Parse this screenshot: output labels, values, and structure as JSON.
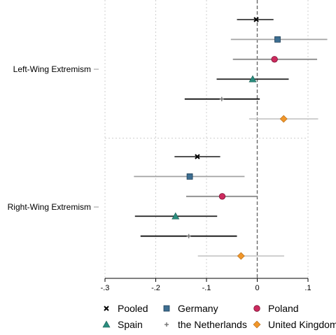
{
  "chart_data": {
    "type": "scatter",
    "subtype": "coefficient-plot",
    "xlim": [
      -0.3,
      0.1
    ],
    "xticks": [
      -0.3,
      -0.2,
      -0.1,
      0,
      0.1
    ],
    "xtick_labels": [
      "-.3",
      "-.2",
      "-.1",
      "0",
      ".1"
    ],
    "grid": true,
    "reference_line": 0,
    "categories": [
      "Left-Wing Extremism",
      "Right-Wing Extremism"
    ],
    "series": [
      {
        "name": "Pooled",
        "marker": "x-icon",
        "color": "#000000",
        "ci_color": "#3a3a3a",
        "points": [
          {
            "category": "Left-Wing Extremism",
            "est": -0.002,
            "lo": -0.04,
            "hi": 0.032
          },
          {
            "category": "Right-Wing Extremism",
            "est": -0.118,
            "lo": -0.163,
            "hi": -0.073
          }
        ]
      },
      {
        "name": "Germany",
        "marker": "square-icon",
        "color": "#3d6e91",
        "ci_color": "#a3a3a3",
        "points": [
          {
            "category": "Left-Wing Extremism",
            "est": 0.04,
            "lo": -0.052,
            "hi": 0.138
          },
          {
            "category": "Right-Wing Extremism",
            "est": -0.133,
            "lo": -0.243,
            "hi": -0.025
          }
        ]
      },
      {
        "name": "Poland",
        "marker": "circle-icon",
        "color": "#cc2a5e",
        "ci_color": "#8c8c8c",
        "points": [
          {
            "category": "Left-Wing Extremism",
            "est": 0.034,
            "lo": -0.048,
            "hi": 0.118
          },
          {
            "category": "Right-Wing Extremism",
            "est": -0.069,
            "lo": -0.14,
            "hi": 0.0
          }
        ]
      },
      {
        "name": "Spain",
        "marker": "triangle-icon",
        "color": "#2a8c7e",
        "ci_color": "#2e2e2e",
        "points": [
          {
            "category": "Left-Wing Extremism",
            "est": -0.009,
            "lo": -0.08,
            "hi": 0.062
          },
          {
            "category": "Right-Wing Extremism",
            "est": -0.161,
            "lo": -0.241,
            "hi": -0.079
          }
        ]
      },
      {
        "name": "the Netherlands",
        "marker": "plus-icon",
        "color": "#7a7a7a",
        "ci_color": "#000000",
        "points": [
          {
            "category": "Left-Wing Extremism",
            "est": -0.07,
            "lo": -0.143,
            "hi": 0.005
          },
          {
            "category": "Right-Wing Extremism",
            "est": -0.135,
            "lo": -0.23,
            "hi": -0.04
          }
        ]
      },
      {
        "name": "United Kingdom",
        "marker": "diamond-icon",
        "color": "#f0962a",
        "ci_color": "#c8c8c8",
        "points": [
          {
            "category": "Left-Wing Extremism",
            "est": 0.052,
            "lo": -0.016,
            "hi": 0.12
          },
          {
            "category": "Right-Wing Extremism",
            "est": -0.032,
            "lo": -0.117,
            "hi": 0.053
          }
        ]
      }
    ],
    "legend": {
      "placement": "bottom",
      "columns": 3
    }
  }
}
